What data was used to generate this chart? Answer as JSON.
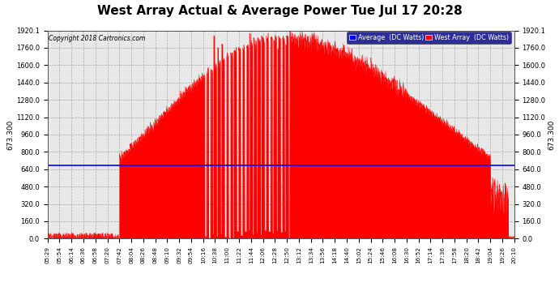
{
  "title": "West Array Actual & Average Power Tue Jul 17 20:28",
  "copyright": "Copyright 2018 Cartronics.com",
  "legend_avg_label": "Average  (DC Watts)",
  "legend_west_label": "West Array  (DC Watts)",
  "avg_value": 673.3,
  "avg_label": "673.300",
  "y_ticks": [
    0.0,
    160.0,
    320.0,
    480.0,
    640.0,
    800.0,
    960.0,
    1120.0,
    1280.0,
    1440.0,
    1600.0,
    1760.0,
    1920.1
  ],
  "y_max": 1920.1,
  "y_min": 0.0,
  "bg_color": "#ffffff",
  "plot_bg_color": "#e8e8e8",
  "grid_color": "#aaaaaa",
  "red_color": "#ff0000",
  "blue_color": "#0000ff",
  "title_fontsize": 11,
  "x_tick_labels": [
    "05:29",
    "05:54",
    "06:14",
    "06:36",
    "06:58",
    "07:20",
    "07:42",
    "08:04",
    "08:26",
    "08:48",
    "09:10",
    "09:32",
    "09:54",
    "10:16",
    "10:38",
    "11:00",
    "11:22",
    "11:44",
    "12:06",
    "12:28",
    "12:50",
    "13:12",
    "13:34",
    "13:56",
    "14:18",
    "14:40",
    "15:02",
    "15:24",
    "15:46",
    "16:08",
    "16:30",
    "16:52",
    "17:14",
    "17:36",
    "17:58",
    "18:20",
    "18:42",
    "19:04",
    "19:26",
    "20:10"
  ]
}
